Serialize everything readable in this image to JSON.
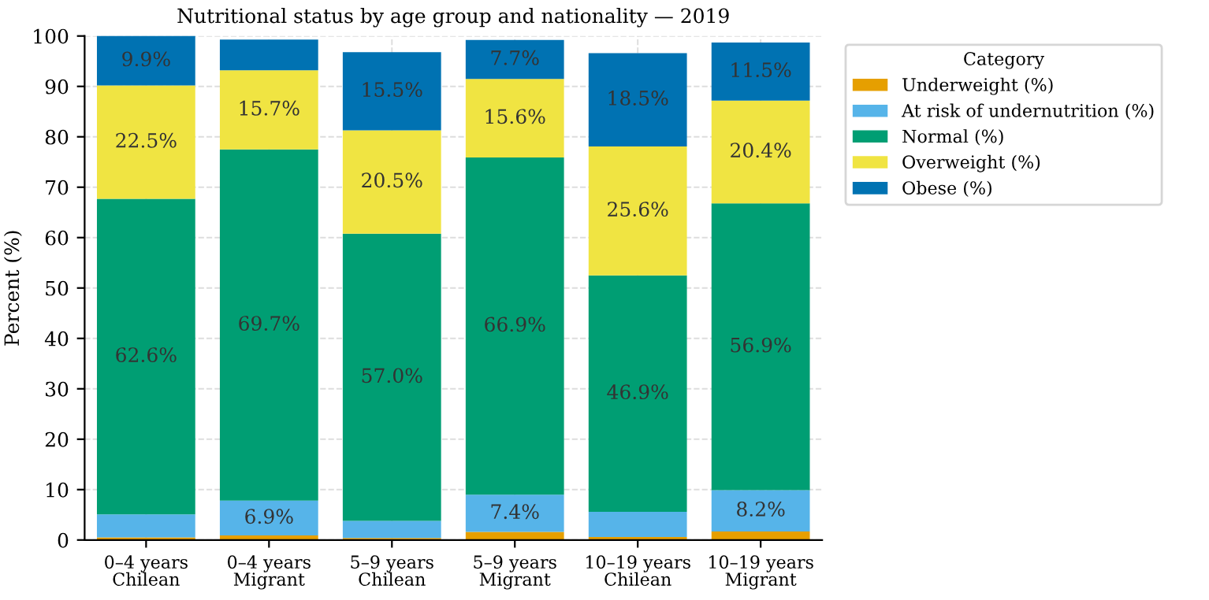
{
  "chart_data": {
    "type": "bar",
    "stacked": true,
    "title": "Nutritional status by age group and nationality — 2019",
    "ylabel": "Percent (%)",
    "categories": [
      "0–4 years\nChilean",
      "0–4 years\nMigrant",
      "5–9 years\nChilean",
      "5–9 years\nMigrant",
      "10–19 years\nChilean",
      "10–19 years\nMigrant"
    ],
    "series": [
      {
        "name": "Underweight (%)",
        "color": "#e69f00",
        "values": [
          0.5,
          0.9,
          0.4,
          1.6,
          0.6,
          1.7
        ],
        "value_labels": [
          null,
          null,
          null,
          null,
          null,
          null
        ]
      },
      {
        "name": "At risk of undernutrition (%)",
        "color": "#56b4e9",
        "values": [
          4.6,
          6.9,
          3.4,
          7.4,
          5.0,
          8.2
        ],
        "value_labels": [
          null,
          "6.9%",
          null,
          "7.4%",
          null,
          "8.2%"
        ]
      },
      {
        "name": "Normal (%)",
        "color": "#009e73",
        "values": [
          62.6,
          69.7,
          57.0,
          66.9,
          46.9,
          56.9
        ],
        "value_labels": [
          "62.6%",
          "69.7%",
          "57.0%",
          "66.9%",
          "46.9%",
          "56.9%"
        ]
      },
      {
        "name": "Overweight (%)",
        "color": "#f0e442",
        "values": [
          22.5,
          15.7,
          20.5,
          15.6,
          25.6,
          20.4
        ],
        "value_labels": [
          "22.5%",
          "15.7%",
          "20.5%",
          "15.6%",
          "25.6%",
          "20.4%"
        ]
      },
      {
        "name": "Obese (%)",
        "color": "#0072b2",
        "values": [
          9.9,
          6.1,
          15.5,
          7.7,
          18.5,
          11.5
        ],
        "value_labels": [
          "9.9%",
          null,
          "15.5%",
          "7.7%",
          "18.5%",
          "11.5%"
        ]
      }
    ],
    "ylim": [
      0,
      100
    ],
    "yticks": [
      0,
      10,
      20,
      30,
      40,
      50,
      60,
      70,
      80,
      90,
      100
    ],
    "grid": true,
    "legend": "top right",
    "legend_title": "Category"
  }
}
